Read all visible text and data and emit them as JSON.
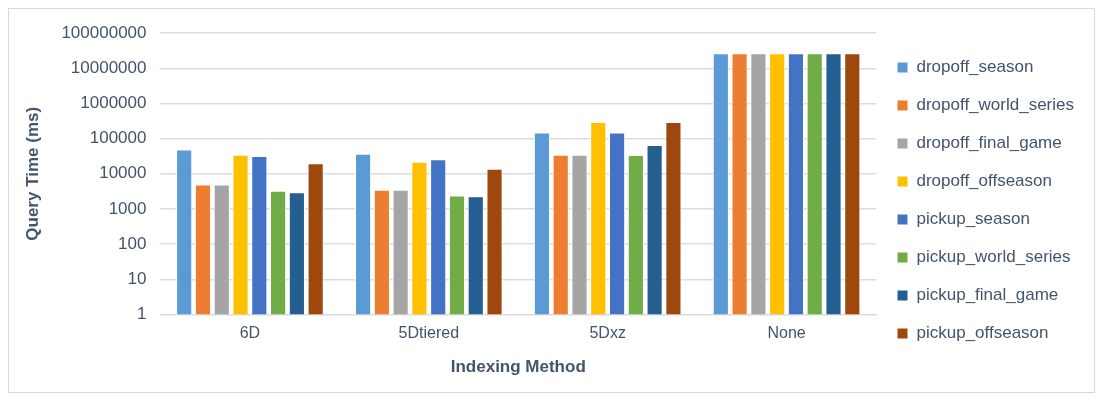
{
  "chart_data": {
    "type": "bar",
    "xlabel": "Indexing Method",
    "ylabel": "Query Time (ms)",
    "categories": [
      "6D",
      "5Dtiered",
      "5Dxz",
      "None"
    ],
    "series": [
      {
        "name": "dropoff_season",
        "color": "#5b9bd5",
        "values": [
          49000,
          37000,
          150000,
          27000000
        ]
      },
      {
        "name": "dropoff_world_series",
        "color": "#ed7d31",
        "values": [
          5000,
          3500,
          35000,
          27000000
        ]
      },
      {
        "name": "dropoff_final_game",
        "color": "#a5a5a5",
        "values": [
          5000,
          3500,
          35000,
          27000000
        ]
      },
      {
        "name": "dropoff_offseason",
        "color": "#ffc000",
        "values": [
          35000,
          22000,
          300000,
          27000000
        ]
      },
      {
        "name": "pickup_season",
        "color": "#4472c4",
        "values": [
          32000,
          26000,
          150000,
          27000000
        ]
      },
      {
        "name": "pickup_world_series",
        "color": "#70ad47",
        "values": [
          3300,
          2400,
          34000,
          27000000
        ]
      },
      {
        "name": "pickup_final_game",
        "color": "#255e91",
        "values": [
          3000,
          2300,
          66000,
          27000000
        ]
      },
      {
        "name": "pickup_offseason",
        "color": "#9e480e",
        "values": [
          20000,
          14000,
          300000,
          27000000
        ]
      }
    ],
    "log": true,
    "ylim": [
      1,
      100000000
    ],
    "yticks": [
      1,
      10,
      100,
      1000,
      10000,
      100000,
      1000000,
      10000000,
      100000000
    ],
    "grid": "y",
    "legend": "right"
  }
}
